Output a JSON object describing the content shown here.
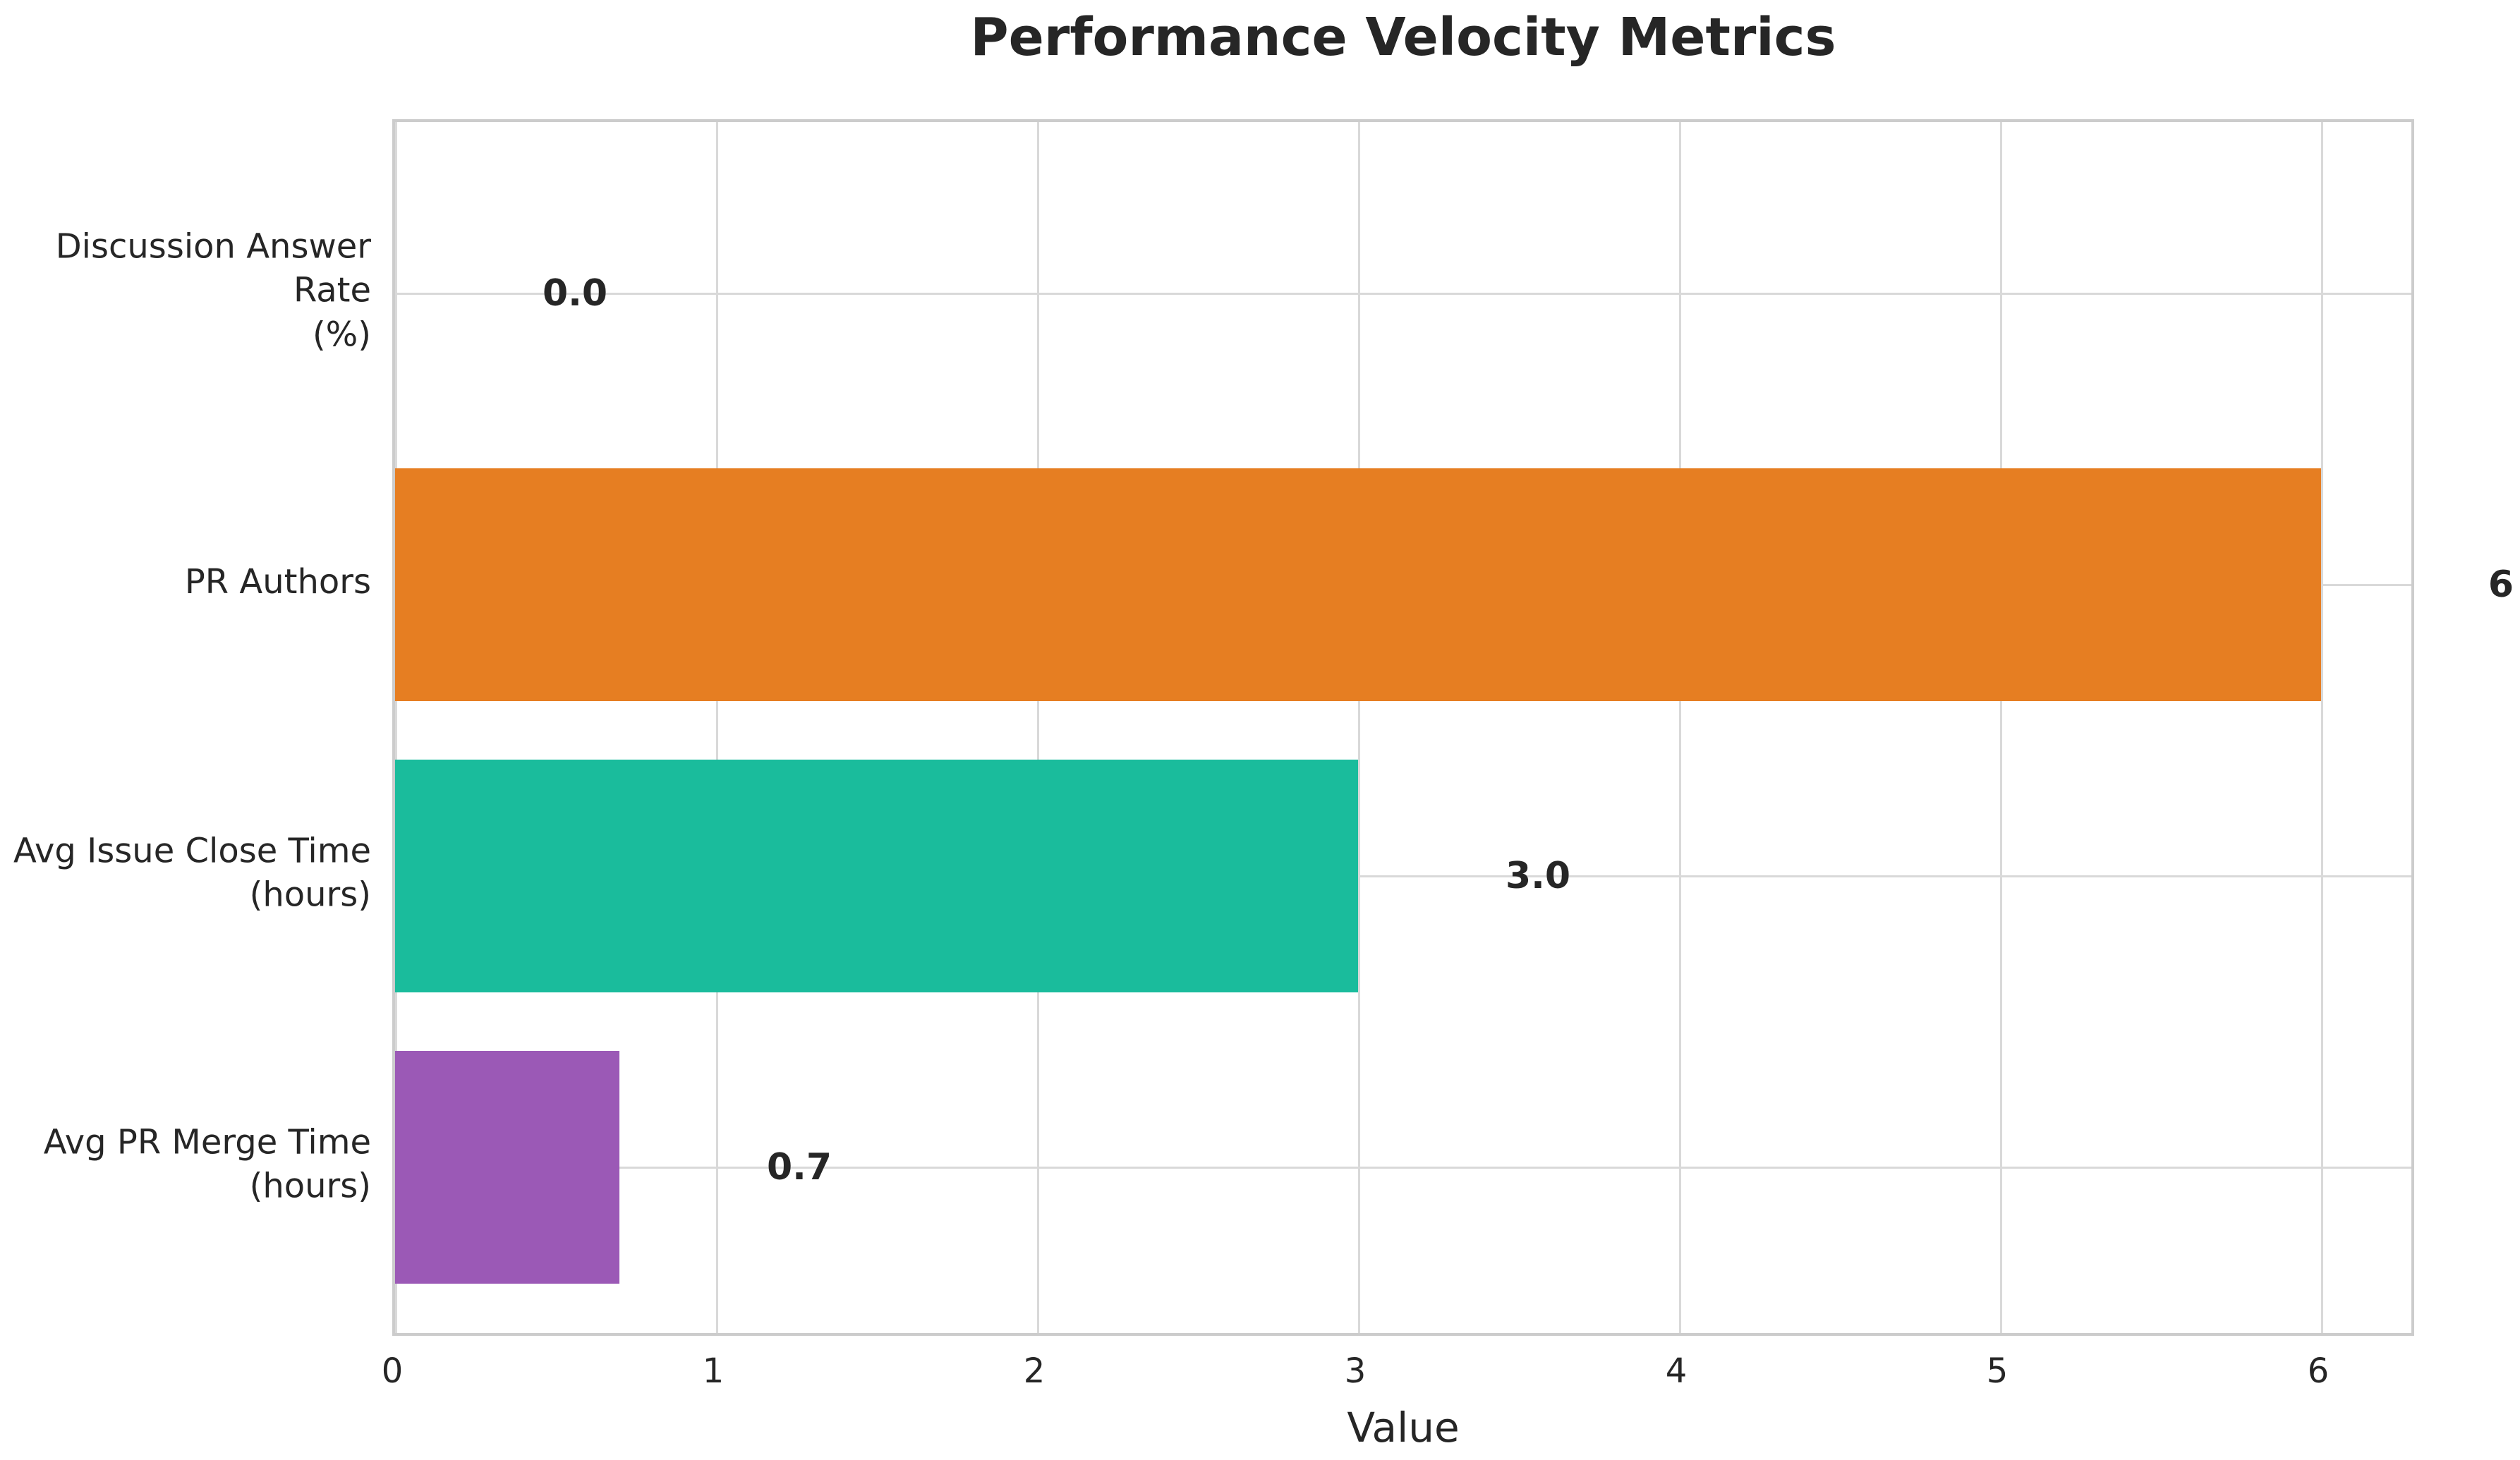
{
  "chart_data": {
    "type": "bar",
    "orientation": "horizontal",
    "title": "Performance Velocity Metrics",
    "xlabel": "Value",
    "ylabel": "",
    "categories": [
      "Discussion Answer Rate\n(%)",
      "PR Authors",
      "Avg Issue Close Time\n(hours)",
      "Avg PR Merge Time\n(hours)"
    ],
    "values": [
      0.0,
      6,
      3.0,
      0.7
    ],
    "value_labels": [
      "0.0",
      "6",
      "3.0",
      "0.7"
    ],
    "bar_colors": [
      "#3498db",
      "#e67e22",
      "#1abc9c",
      "#9b59b6"
    ],
    "x_ticks": [
      0,
      1,
      2,
      3,
      4,
      5,
      6
    ],
    "xlim": [
      0,
      6.3
    ],
    "grid": true,
    "legend": null,
    "colors": {
      "text": "#262626",
      "grid": "#d9d9d9",
      "spine": "#cccccc",
      "background": "#ffffff"
    }
  }
}
